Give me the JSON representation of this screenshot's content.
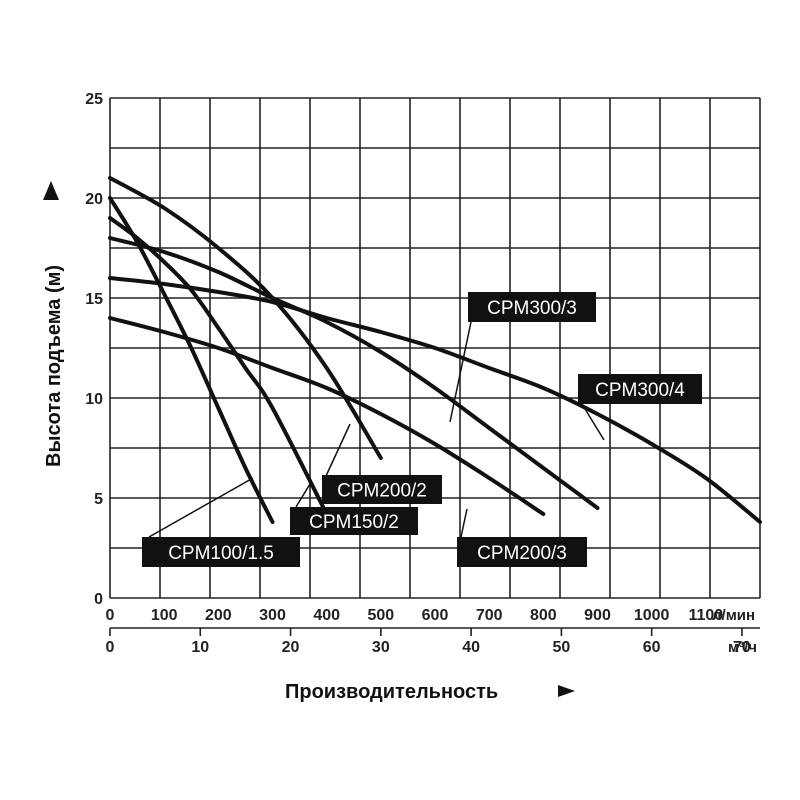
{
  "chart_data": {
    "type": "line",
    "ylabel": "Высота подъема (м)",
    "xlabel": "Производительность",
    "x_unit_primary": "л/мин",
    "x_unit_secondary": "м³/ч",
    "x_ticks_primary": [
      0,
      100,
      200,
      300,
      400,
      500,
      600,
      700,
      800,
      900,
      1000,
      1100
    ],
    "x_ticks_secondary": [
      0,
      10,
      20,
      30,
      40,
      50,
      60,
      70
    ],
    "y_ticks": [
      0,
      5,
      10,
      15,
      20,
      25
    ],
    "xlim": [
      0,
      1200
    ],
    "ylim": [
      0,
      25
    ],
    "grid": true,
    "series": [
      {
        "name": "CPM100/1.5",
        "x": [
          0,
          50,
          100,
          150,
          200,
          250,
          300
        ],
        "y": [
          20,
          17.8,
          15.2,
          12.5,
          9.5,
          6.5,
          3.8
        ]
      },
      {
        "name": "CPM150/2",
        "x": [
          0,
          50,
          100,
          150,
          200,
          250,
          300,
          400
        ],
        "y": [
          19,
          18,
          16.8,
          15.4,
          13.5,
          11.5,
          9.5,
          4.2
        ]
      },
      {
        "name": "CPM200/2",
        "x": [
          0,
          100,
          200,
          300,
          400,
          500
        ],
        "y": [
          21,
          19.5,
          17.5,
          15,
          11.5,
          7
        ]
      },
      {
        "name": "CPM200/3",
        "x": [
          0,
          100,
          200,
          300,
          400,
          500,
          600,
          700,
          800
        ],
        "y": [
          14,
          13.3,
          12.5,
          11.5,
          10.5,
          9.2,
          7.7,
          6,
          4.2
        ]
      },
      {
        "name": "CPM300/3",
        "x": [
          0,
          100,
          200,
          300,
          400,
          500,
          600,
          700,
          800,
          900
        ],
        "y": [
          18,
          17.3,
          16.3,
          15,
          13.8,
          12.3,
          10.5,
          8.5,
          6.5,
          4.5
        ]
      },
      {
        "name": "CPM300/4",
        "x": [
          0,
          100,
          200,
          300,
          400,
          500,
          600,
          700,
          800,
          900,
          1000,
          1100,
          1200
        ],
        "y": [
          16,
          15.7,
          15.3,
          14.8,
          14,
          13.3,
          12.5,
          11.5,
          10.5,
          9.2,
          7.7,
          6,
          3.8
        ]
      }
    ],
    "labels": [
      {
        "text": "CPM100/1.5"
      },
      {
        "text": "CPM150/2"
      },
      {
        "text": "CPM200/2"
      },
      {
        "text": "CPM200/3"
      },
      {
        "text": "CPM300/3"
      },
      {
        "text": "CPM300/4"
      }
    ]
  }
}
